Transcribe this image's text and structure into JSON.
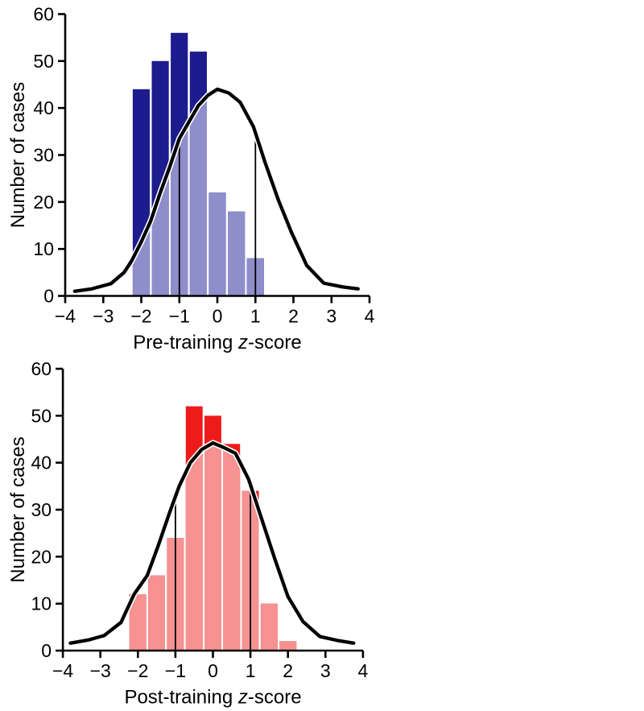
{
  "page": {
    "background": "#ffffff"
  },
  "chart_data": [
    {
      "type": "bar",
      "subtype": "histogram-with-normal-curve",
      "title": "",
      "xlabel": {
        "prefix": "Pre-training ",
        "italic": "z",
        "suffix": "-score"
      },
      "ylabel": "Number of cases",
      "xlim": [
        -4,
        4
      ],
      "ylim": [
        0,
        60
      ],
      "grid": false,
      "legend": null,
      "bin_width": 0.5,
      "x_ticks": [
        {
          "v": -4,
          "label": "−4"
        },
        {
          "v": -3,
          "label": "−3"
        },
        {
          "v": -2,
          "label": "−2"
        },
        {
          "v": -1,
          "label": "−1"
        },
        {
          "v": 0,
          "label": "0"
        },
        {
          "v": 1,
          "label": "1"
        },
        {
          "v": 2,
          "label": "2"
        },
        {
          "v": 3,
          "label": "3"
        },
        {
          "v": 4,
          "label": "4"
        }
      ],
      "y_ticks": [
        {
          "v": 0,
          "label": "0"
        },
        {
          "v": 10,
          "label": "10"
        },
        {
          "v": 20,
          "label": "20"
        },
        {
          "v": 30,
          "label": "30"
        },
        {
          "v": 40,
          "label": "40"
        },
        {
          "v": 50,
          "label": "50"
        },
        {
          "v": 60,
          "label": "60"
        }
      ],
      "bars": [
        {
          "center": -2.0,
          "count": 44
        },
        {
          "center": -1.5,
          "count": 50
        },
        {
          "center": -1.0,
          "count": 56
        },
        {
          "center": -0.5,
          "count": 52
        },
        {
          "center": 0.0,
          "count": 22
        },
        {
          "center": 0.5,
          "count": 18
        },
        {
          "center": 1.0,
          "count": 8
        }
      ],
      "sd_lines": [
        -1,
        1
      ],
      "curve_points": [
        [
          -3.75,
          1
        ],
        [
          -3.3,
          1.5
        ],
        [
          -2.8,
          2.6
        ],
        [
          -2.45,
          5
        ],
        [
          -2.25,
          7.5
        ],
        [
          -2.0,
          11.5
        ],
        [
          -1.75,
          16
        ],
        [
          -1.5,
          22
        ],
        [
          -1.25,
          27.5
        ],
        [
          -1.0,
          33.5
        ],
        [
          -0.75,
          37
        ],
        [
          -0.5,
          40.5
        ],
        [
          -0.25,
          42.7
        ],
        [
          0,
          44
        ],
        [
          0.3,
          43.2
        ],
        [
          0.6,
          41.2
        ],
        [
          0.95,
          36
        ],
        [
          1.25,
          28.5
        ],
        [
          1.6,
          20.5
        ],
        [
          1.95,
          13.5
        ],
        [
          2.35,
          6.5
        ],
        [
          2.8,
          2.7
        ],
        [
          3.3,
          1.9
        ],
        [
          3.7,
          1.5
        ]
      ],
      "colors": {
        "bar_above_curve": "#1c1c8e",
        "bar_below_curve": "#8e8ecb",
        "curve": "#000000",
        "curve_halo": "#ffffff",
        "sd_line": "#000000",
        "axis": "#000000"
      }
    },
    {
      "type": "bar",
      "subtype": "histogram-with-normal-curve",
      "title": "",
      "xlabel": {
        "prefix": "Post-training ",
        "italic": "z",
        "suffix": "-score"
      },
      "ylabel": "Number of cases",
      "xlim": [
        -4,
        4
      ],
      "ylim": [
        0,
        60
      ],
      "grid": false,
      "legend": null,
      "bin_width": 0.5,
      "x_ticks": [
        {
          "v": -4,
          "label": "−4"
        },
        {
          "v": -3,
          "label": "−3"
        },
        {
          "v": -2,
          "label": "−2"
        },
        {
          "v": -1,
          "label": "−1"
        },
        {
          "v": 0,
          "label": "0"
        },
        {
          "v": 1,
          "label": "1"
        },
        {
          "v": 2,
          "label": "2"
        },
        {
          "v": 3,
          "label": "3"
        },
        {
          "v": 4,
          "label": "4"
        }
      ],
      "y_ticks": [
        {
          "v": 0,
          "label": "0"
        },
        {
          "v": 10,
          "label": "10"
        },
        {
          "v": 20,
          "label": "20"
        },
        {
          "v": 30,
          "label": "30"
        },
        {
          "v": 40,
          "label": "40"
        },
        {
          "v": 50,
          "label": "50"
        },
        {
          "v": 60,
          "label": "60"
        }
      ],
      "bars": [
        {
          "center": -2.0,
          "count": 12
        },
        {
          "center": -1.5,
          "count": 16
        },
        {
          "center": -1.0,
          "count": 24
        },
        {
          "center": -0.5,
          "count": 52
        },
        {
          "center": 0.0,
          "count": 50
        },
        {
          "center": 0.5,
          "count": 44
        },
        {
          "center": 1.0,
          "count": 34
        },
        {
          "center": 1.5,
          "count": 10
        },
        {
          "center": 2.0,
          "count": 2
        }
      ],
      "sd_lines": [
        -1,
        1
      ],
      "curve_points": [
        [
          -3.8,
          1.6
        ],
        [
          -3.3,
          2.3
        ],
        [
          -2.9,
          3.2
        ],
        [
          -2.45,
          6
        ],
        [
          -2.1,
          12
        ],
        [
          -1.75,
          16
        ],
        [
          -1.45,
          22.5
        ],
        [
          -1.15,
          29.5
        ],
        [
          -0.9,
          35
        ],
        [
          -0.6,
          40
        ],
        [
          -0.3,
          42.8
        ],
        [
          0,
          44.2
        ],
        [
          0.3,
          43.2
        ],
        [
          0.6,
          42
        ],
        [
          0.95,
          36.5
        ],
        [
          1.3,
          28
        ],
        [
          1.65,
          19.5
        ],
        [
          2.0,
          11.5
        ],
        [
          2.4,
          6.2
        ],
        [
          2.85,
          3.0
        ],
        [
          3.3,
          2.2
        ],
        [
          3.75,
          1.6
        ]
      ],
      "colors": {
        "bar_above_curve": "#ee1b1b",
        "bar_below_curve": "#f69292",
        "curve": "#000000",
        "curve_halo": "#ffffff",
        "sd_line": "#000000",
        "axis": "#000000"
      }
    }
  ]
}
